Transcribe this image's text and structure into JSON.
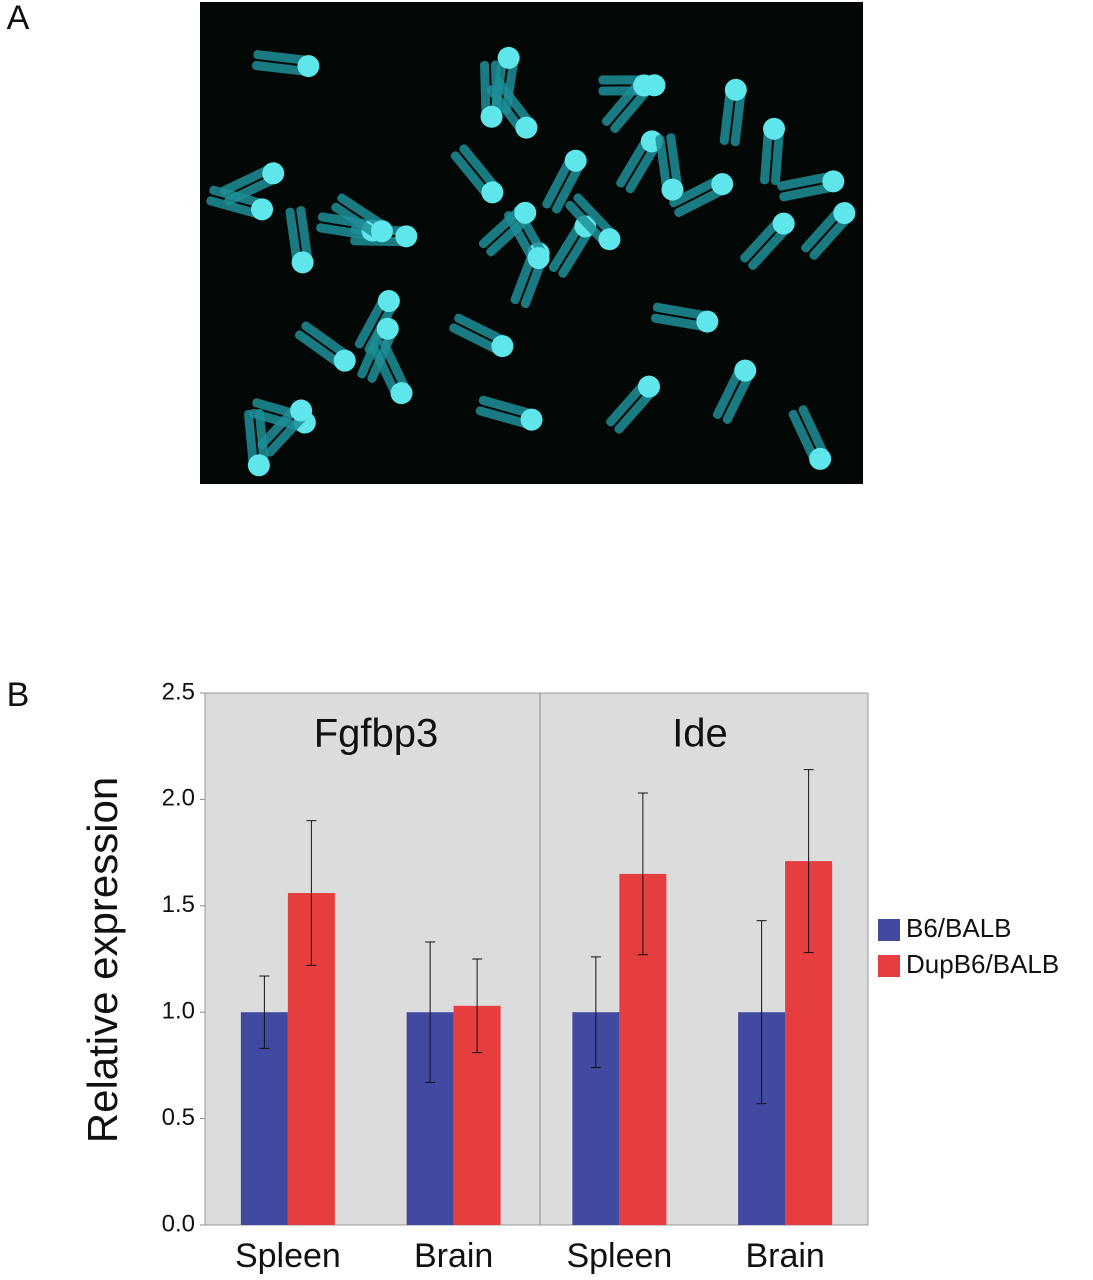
{
  "panel_labels": [
    "A",
    "B"
  ],
  "chart_data": {
    "type": "bar",
    "ylabel": "Relative expression",
    "categories": [
      "Spleen",
      "Brain",
      "Spleen",
      "Brain"
    ],
    "groups": [
      "Fgfbp3",
      "Ide"
    ],
    "series": [
      {
        "name": "B6/BALB",
        "color": "#4249a0",
        "values": [
          1,
          1,
          1,
          1
        ],
        "errors": [
          0.17,
          0.33,
          0.26,
          0.43
        ]
      },
      {
        "name": "DupB6/BALB",
        "color": "#e63e3e",
        "values": [
          1.56,
          1.03,
          1.65,
          1.71
        ],
        "errors": [
          0.34,
          0.22,
          0.38,
          0.43
        ]
      }
    ],
    "ylim": [
      0,
      2.5
    ],
    "yticks": [
      {
        "value": 0,
        "label": "0.0"
      },
      0.5,
      {
        "value": 1,
        "label": "1.0"
      },
      1.5,
      {
        "value": 2,
        "label": "2.0"
      },
      2.5
    ],
    "legend": "right"
  }
}
